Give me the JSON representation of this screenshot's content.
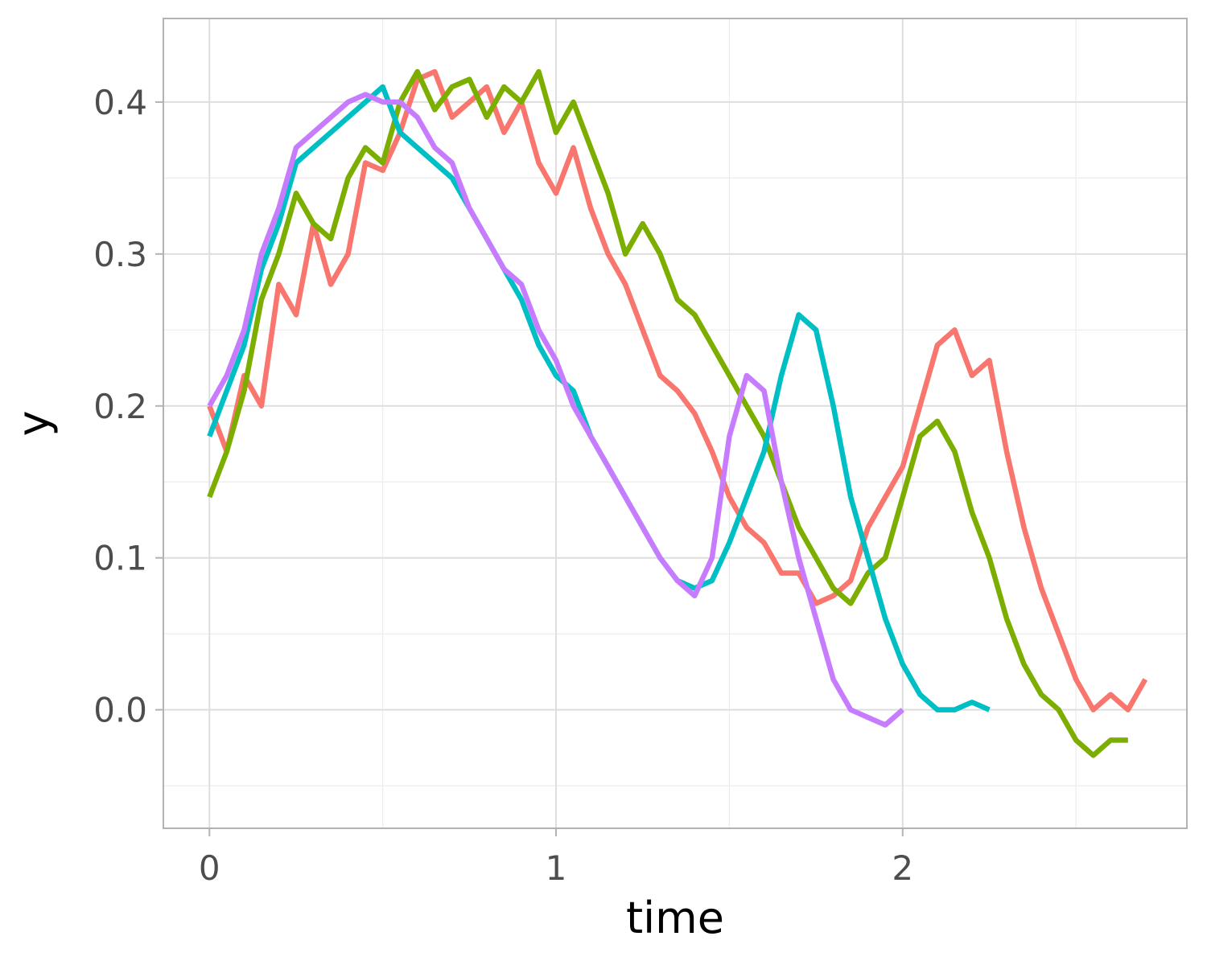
{
  "chart_data": {
    "type": "line",
    "xlabel": "time",
    "ylabel": "y",
    "xlim": [
      -0.133,
      2.82
    ],
    "ylim": [
      -0.078,
      0.455
    ],
    "x_ticks": [
      0,
      1,
      2
    ],
    "x_tick_labels": [
      "0",
      "1",
      "2"
    ],
    "x_minor_ticks": [
      0.5,
      1.5,
      2.5
    ],
    "y_ticks": [
      0.0,
      0.1,
      0.2,
      0.3,
      0.4
    ],
    "y_tick_labels": [
      "0.0",
      "0.1",
      "0.2",
      "0.3",
      "0.4"
    ],
    "y_minor_ticks": [
      -0.05,
      0.05,
      0.15,
      0.25,
      0.35
    ],
    "grid": true,
    "legend": "none",
    "series": [
      {
        "color": "#F8766D",
        "x": [
          0.0,
          0.05,
          0.1,
          0.15,
          0.2,
          0.25,
          0.3,
          0.35,
          0.4,
          0.45,
          0.5,
          0.55,
          0.6,
          0.65,
          0.7,
          0.75,
          0.8,
          0.85,
          0.9,
          0.95,
          1.0,
          1.05,
          1.1,
          1.15,
          1.2,
          1.25,
          1.3,
          1.35,
          1.4,
          1.45,
          1.5,
          1.55,
          1.6,
          1.65,
          1.7,
          1.75,
          1.8,
          1.85,
          1.9,
          1.95,
          2.0,
          2.05,
          2.1,
          2.15,
          2.2,
          2.25,
          2.3,
          2.35,
          2.4,
          2.45,
          2.5,
          2.55,
          2.6,
          2.65,
          2.7
        ],
        "y": [
          0.2,
          0.17,
          0.22,
          0.2,
          0.28,
          0.26,
          0.32,
          0.28,
          0.3,
          0.36,
          0.355,
          0.38,
          0.415,
          0.42,
          0.39,
          0.4,
          0.41,
          0.38,
          0.4,
          0.36,
          0.34,
          0.37,
          0.33,
          0.3,
          0.28,
          0.25,
          0.22,
          0.21,
          0.195,
          0.17,
          0.14,
          0.12,
          0.11,
          0.09,
          0.09,
          0.07,
          0.075,
          0.085,
          0.12,
          0.14,
          0.16,
          0.2,
          0.24,
          0.25,
          0.22,
          0.23,
          0.17,
          0.12,
          0.08,
          0.05,
          0.02,
          0.0,
          0.01,
          0.0,
          0.02
        ]
      },
      {
        "color": "#7CAE00",
        "x": [
          0.0,
          0.05,
          0.1,
          0.15,
          0.2,
          0.25,
          0.3,
          0.35,
          0.4,
          0.45,
          0.5,
          0.55,
          0.6,
          0.65,
          0.7,
          0.75,
          0.8,
          0.85,
          0.9,
          0.95,
          1.0,
          1.05,
          1.1,
          1.15,
          1.2,
          1.25,
          1.3,
          1.35,
          1.4,
          1.45,
          1.5,
          1.55,
          1.6,
          1.65,
          1.7,
          1.75,
          1.8,
          1.85,
          1.9,
          1.95,
          2.0,
          2.05,
          2.1,
          2.15,
          2.2,
          2.25,
          2.3,
          2.35,
          2.4,
          2.45,
          2.5,
          2.55,
          2.6,
          2.65
        ],
        "y": [
          0.14,
          0.17,
          0.21,
          0.27,
          0.3,
          0.34,
          0.32,
          0.31,
          0.35,
          0.37,
          0.36,
          0.4,
          0.42,
          0.395,
          0.41,
          0.415,
          0.39,
          0.41,
          0.4,
          0.42,
          0.38,
          0.4,
          0.37,
          0.34,
          0.3,
          0.32,
          0.3,
          0.27,
          0.26,
          0.24,
          0.22,
          0.2,
          0.18,
          0.15,
          0.12,
          0.1,
          0.08,
          0.07,
          0.09,
          0.1,
          0.14,
          0.18,
          0.19,
          0.17,
          0.13,
          0.1,
          0.06,
          0.03,
          0.01,
          0.0,
          -0.02,
          -0.03,
          -0.02,
          -0.02
        ]
      },
      {
        "color": "#00BFC4",
        "x": [
          0.0,
          0.05,
          0.1,
          0.15,
          0.2,
          0.25,
          0.3,
          0.35,
          0.4,
          0.45,
          0.5,
          0.55,
          0.6,
          0.65,
          0.7,
          0.75,
          0.8,
          0.85,
          0.9,
          0.95,
          1.0,
          1.05,
          1.1,
          1.15,
          1.2,
          1.25,
          1.3,
          1.35,
          1.4,
          1.45,
          1.5,
          1.55,
          1.6,
          1.65,
          1.7,
          1.75,
          1.8,
          1.85,
          1.9,
          1.95,
          2.0,
          2.05,
          2.1,
          2.15,
          2.2,
          2.25
        ],
        "y": [
          0.18,
          0.21,
          0.24,
          0.29,
          0.32,
          0.36,
          0.37,
          0.38,
          0.39,
          0.4,
          0.41,
          0.38,
          0.37,
          0.36,
          0.35,
          0.33,
          0.31,
          0.29,
          0.27,
          0.24,
          0.22,
          0.21,
          0.18,
          0.16,
          0.14,
          0.12,
          0.1,
          0.085,
          0.08,
          0.085,
          0.11,
          0.14,
          0.17,
          0.22,
          0.26,
          0.25,
          0.2,
          0.14,
          0.1,
          0.06,
          0.03,
          0.01,
          0.0,
          0.0,
          0.005,
          0.0
        ]
      },
      {
        "color": "#C77CFF",
        "x": [
          0.0,
          0.05,
          0.1,
          0.15,
          0.2,
          0.25,
          0.3,
          0.35,
          0.4,
          0.45,
          0.5,
          0.55,
          0.6,
          0.65,
          0.7,
          0.75,
          0.8,
          0.85,
          0.9,
          0.95,
          1.0,
          1.05,
          1.1,
          1.15,
          1.2,
          1.25,
          1.3,
          1.35,
          1.4,
          1.45,
          1.5,
          1.55,
          1.6,
          1.65,
          1.7,
          1.75,
          1.8,
          1.85,
          1.9,
          1.95,
          2.0
        ],
        "y": [
          0.2,
          0.22,
          0.25,
          0.3,
          0.33,
          0.37,
          0.38,
          0.39,
          0.4,
          0.405,
          0.4,
          0.4,
          0.39,
          0.37,
          0.36,
          0.33,
          0.31,
          0.29,
          0.28,
          0.25,
          0.23,
          0.2,
          0.18,
          0.16,
          0.14,
          0.12,
          0.1,
          0.085,
          0.075,
          0.1,
          0.18,
          0.22,
          0.21,
          0.15,
          0.1,
          0.06,
          0.02,
          0.0,
          -0.005,
          -0.01,
          0.0
        ]
      }
    ]
  }
}
